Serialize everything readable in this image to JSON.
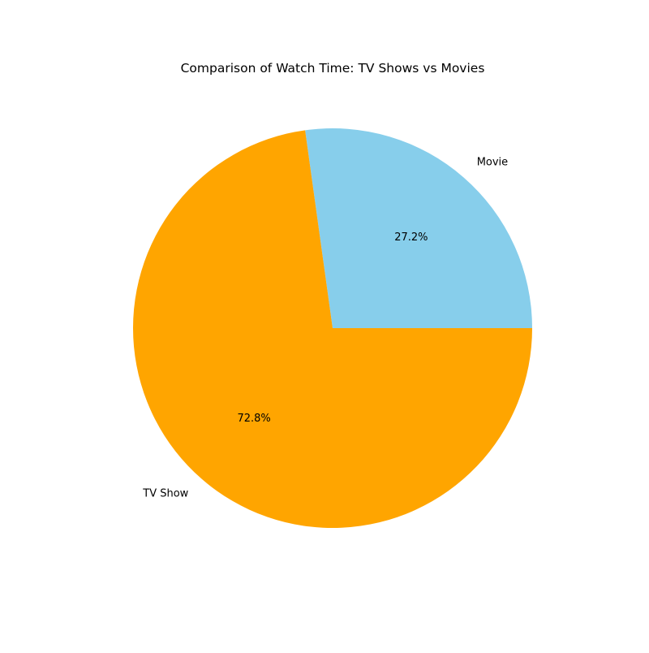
{
  "chart_data": {
    "type": "pie",
    "title": "Comparison of Watch Time: TV Shows vs Movies",
    "categories": [
      "Movie",
      "TV Show"
    ],
    "values": [
      27.2,
      72.8
    ],
    "percent_labels": [
      "27.2%",
      "72.8%"
    ],
    "colors": [
      "#87CEEB",
      "#FFA500"
    ],
    "legend": "none"
  }
}
